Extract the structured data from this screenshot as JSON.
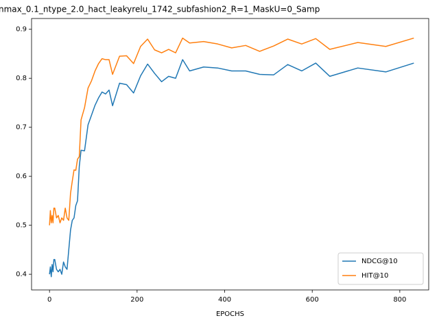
{
  "chart_data": {
    "type": "line",
    "title": "nmax_0.1_ntype_2.0_hact_leakyrelu_1742_subfashion2_R=1_MaskU=0_Samp",
    "x_label": "EPOCHS",
    "x": [
      0,
      2,
      4,
      6,
      8,
      10,
      12,
      16,
      20,
      24,
      28,
      32,
      36,
      40,
      44,
      48,
      52,
      56,
      60,
      64,
      68,
      72,
      80,
      88,
      96,
      104,
      112,
      120,
      128,
      136,
      144,
      160,
      176,
      192,
      208,
      224,
      240,
      256,
      272,
      288,
      304,
      320,
      352,
      384,
      416,
      448,
      480,
      512,
      544,
      576,
      608,
      640,
      704,
      768,
      832
    ],
    "series": [
      {
        "name": "NDCG@10",
        "color": "#1f77b4",
        "values": [
          0.4,
          0.415,
          0.395,
          0.42,
          0.405,
          0.43,
          0.43,
          0.41,
          0.405,
          0.41,
          0.4,
          0.425,
          0.415,
          0.41,
          0.45,
          0.49,
          0.51,
          0.515,
          0.54,
          0.55,
          0.62,
          0.653,
          0.652,
          0.705,
          0.725,
          0.745,
          0.76,
          0.772,
          0.768,
          0.776,
          0.744,
          0.79,
          0.787,
          0.77,
          0.805,
          0.829,
          0.81,
          0.793,
          0.804,
          0.8,
          0.838,
          0.815,
          0.823,
          0.821,
          0.815,
          0.815,
          0.808,
          0.807,
          0.828,
          0.815,
          0.831,
          0.804,
          0.821,
          0.813,
          0.831
        ]
      },
      {
        "name": "HIT@10",
        "color": "#ff7f0e",
        "values": [
          0.5,
          0.53,
          0.505,
          0.52,
          0.505,
          0.535,
          0.535,
          0.515,
          0.52,
          0.505,
          0.515,
          0.51,
          0.535,
          0.515,
          0.51,
          0.565,
          0.59,
          0.613,
          0.612,
          0.635,
          0.64,
          0.715,
          0.74,
          0.78,
          0.795,
          0.815,
          0.83,
          0.84,
          0.838,
          0.838,
          0.808,
          0.845,
          0.846,
          0.83,
          0.865,
          0.88,
          0.858,
          0.852,
          0.859,
          0.852,
          0.882,
          0.872,
          0.875,
          0.87,
          0.862,
          0.867,
          0.855,
          0.866,
          0.88,
          0.87,
          0.881,
          0.859,
          0.873,
          0.865,
          0.882
        ]
      }
    ],
    "xlim": [
      -41,
      866
    ],
    "xticks": [
      0,
      200,
      400,
      600,
      800
    ],
    "ylim": [
      0.368,
      0.922
    ],
    "yticks": [
      0.4,
      0.5,
      0.6,
      0.7,
      0.8,
      0.9
    ],
    "legend": "lower right"
  }
}
